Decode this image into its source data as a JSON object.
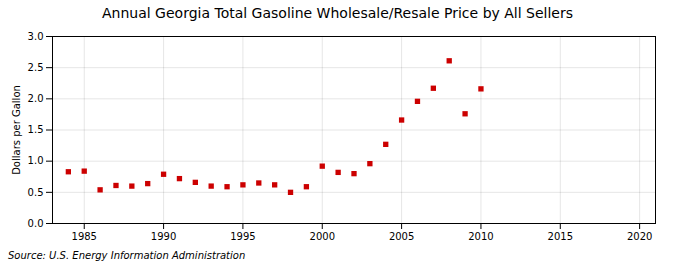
{
  "chart_data": {
    "type": "scatter",
    "title": "Annual Georgia Total Gasoline Wholesale/Resale Price by All Sellers",
    "ylabel": "Dollars per Gallon",
    "annotation": "Source: U.S. Energy Information Administration",
    "x": [
      1984,
      1985,
      1986,
      1987,
      1988,
      1989,
      1990,
      1991,
      1992,
      1993,
      1994,
      1995,
      1996,
      1997,
      1998,
      1999,
      2000,
      2001,
      2002,
      2003,
      2004,
      2005,
      2006,
      2007,
      2008,
      2009,
      2010
    ],
    "values": [
      0.83,
      0.84,
      0.54,
      0.61,
      0.6,
      0.64,
      0.79,
      0.72,
      0.66,
      0.6,
      0.59,
      0.62,
      0.65,
      0.62,
      0.5,
      0.59,
      0.92,
      0.82,
      0.8,
      0.96,
      1.27,
      1.66,
      1.96,
      2.17,
      2.61,
      1.76,
      2.16
    ],
    "color": "#cc0000",
    "marker": "square",
    "xlim": [
      1983,
      2021
    ],
    "ylim": [
      0.0,
      3.0
    ],
    "xticks": [
      1985,
      1990,
      1995,
      2000,
      2005,
      2010,
      2015,
      2020
    ],
    "yticks": [
      {
        "value": 0.0,
        "label": "0.0"
      },
      0.5,
      {
        "value": 1.0,
        "label": "1.0"
      },
      1.5,
      {
        "value": 2.0,
        "label": "2.0"
      },
      2.5,
      {
        "value": 3.0,
        "label": "3.0"
      }
    ],
    "grid": true
  }
}
